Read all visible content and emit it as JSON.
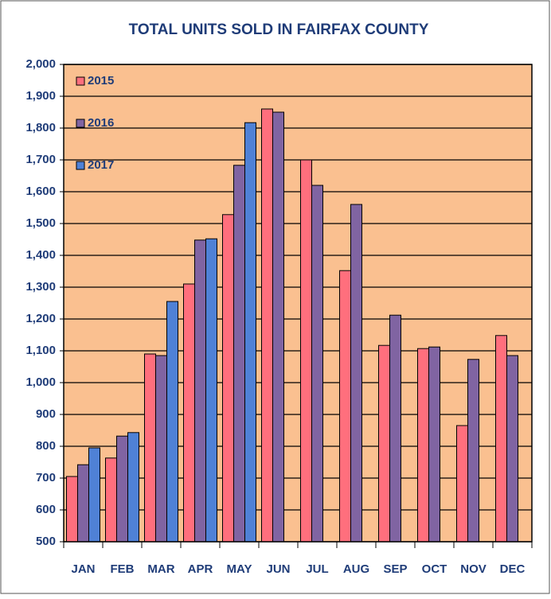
{
  "chart_data": {
    "type": "bar",
    "title": "TOTAL  UNITS SOLD IN FAIRFAX COUNTY",
    "categories": [
      "JAN",
      "FEB",
      "MAR",
      "APR",
      "MAY",
      "JUN",
      "JUL",
      "AUG",
      "SEP",
      "OCT",
      "NOV",
      "DEC"
    ],
    "series": [
      {
        "name": "2015",
        "color": "#ff6f7d",
        "values": [
          705,
          763,
          1090,
          1310,
          1528,
          1860,
          1700,
          1352,
          1117,
          1107,
          865,
          1148
        ]
      },
      {
        "name": "2016",
        "color": "#8064a2",
        "values": [
          742,
          832,
          1085,
          1448,
          1683,
          1850,
          1620,
          1560,
          1212,
          1112,
          1073,
          1085
        ]
      },
      {
        "name": "2017",
        "color": "#4f81d6",
        "values": [
          795,
          843,
          1255,
          1452,
          1817,
          null,
          null,
          null,
          null,
          null,
          null,
          null
        ]
      }
    ],
    "ylim": [
      500,
      2000
    ],
    "yticks": [
      500,
      600,
      700,
      800,
      900,
      {
        "value": 1000,
        "label": "1,000"
      },
      {
        "value": 1100,
        "label": "1,100"
      },
      {
        "value": 1200,
        "label": "1,200"
      },
      {
        "value": 1300,
        "label": "1,300"
      },
      {
        "value": 1400,
        "label": "1,400"
      },
      {
        "value": 1500,
        "label": "1,500"
      },
      {
        "value": 1600,
        "label": "1,600"
      },
      {
        "value": 1700,
        "label": "1,700"
      },
      {
        "value": 1800,
        "label": "1,800"
      },
      {
        "value": 1900,
        "label": "1,900"
      },
      {
        "value": 2000,
        "label": "2,000"
      }
    ],
    "grid": true,
    "legend": "top-left"
  }
}
